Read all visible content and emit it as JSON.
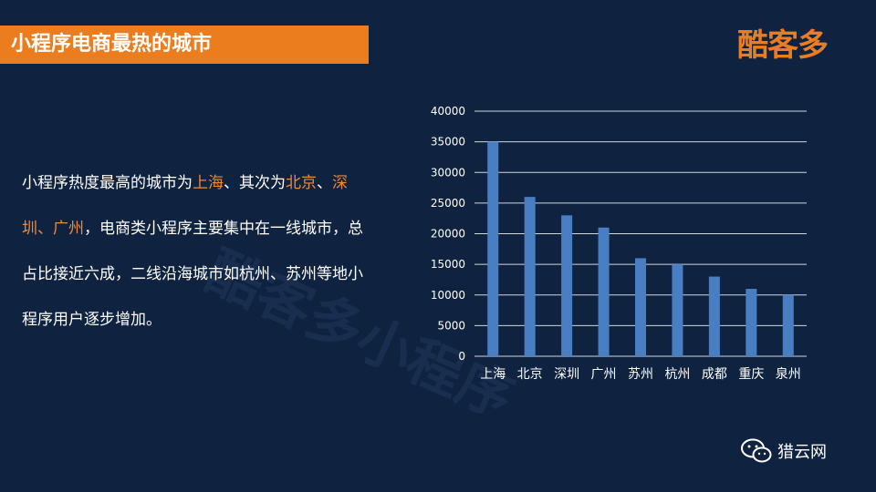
{
  "header": {
    "title": "小程序电商最热的城市"
  },
  "logo": {
    "text": "酷客多"
  },
  "watermark": {
    "text": "酷客多小程序"
  },
  "paragraph": {
    "seg1": "小程序热度最高的城市为",
    "city1": "上海",
    "seg2": "、其次为",
    "city2": "北京",
    "seg3": "、",
    "city3": "深圳",
    "sep1": "、",
    "city4": "广州",
    "seg4": "，电商类小程序主要集中在一线城市，总占比接近六成，二线沿海城市如杭州、苏州等地小程序用户逐步增加。"
  },
  "footer": {
    "brand": "猎云网",
    "icon": "wechat-icon"
  },
  "colors": {
    "accent": "#ec7d1f",
    "bar": "#4a7ec2",
    "background": "#0f2340"
  },
  "chart_data": {
    "type": "bar",
    "categories": [
      "上海",
      "北京",
      "深圳",
      "广州",
      "苏州",
      "杭州",
      "成都",
      "重庆",
      "泉州"
    ],
    "values": [
      35000,
      26000,
      23000,
      21000,
      16000,
      15000,
      13000,
      11000,
      10000
    ],
    "ylim": [
      0,
      40000
    ],
    "yticks": [
      0,
      5000,
      10000,
      15000,
      20000,
      25000,
      30000,
      35000,
      40000
    ],
    "grid": true
  }
}
